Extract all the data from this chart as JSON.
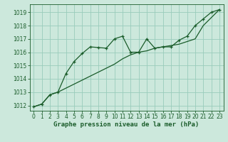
{
  "title": "Graphe pression niveau de la mer (hPa)",
  "bg_color": "#cce8dc",
  "grid_color": "#99ccbb",
  "line_color": "#1a5c2a",
  "spine_color": "#1a5c2a",
  "x_ticks": [
    0,
    1,
    2,
    3,
    4,
    5,
    6,
    7,
    8,
    9,
    10,
    11,
    12,
    13,
    14,
    15,
    16,
    17,
    18,
    19,
    20,
    21,
    22,
    23
  ],
  "y_ticks": [
    1012,
    1013,
    1014,
    1015,
    1016,
    1017,
    1018,
    1019
  ],
  "ylim": [
    1011.6,
    1019.6
  ],
  "xlim": [
    -0.5,
    23.5
  ],
  "line1_x": [
    0,
    1,
    2,
    3,
    4,
    5,
    6,
    7,
    8,
    9,
    10,
    11,
    12,
    13,
    14,
    15,
    16,
    17,
    18,
    19,
    20,
    21,
    22,
    23
  ],
  "line1_y": [
    1011.9,
    1012.1,
    1012.8,
    1013.0,
    1014.4,
    1015.3,
    1015.9,
    1016.4,
    1016.35,
    1016.3,
    1017.0,
    1017.2,
    1016.0,
    1016.0,
    1017.0,
    1016.3,
    1016.4,
    1016.4,
    1016.9,
    1017.2,
    1018.0,
    1018.5,
    1019.0,
    1019.2
  ],
  "line2_x": [
    0,
    1,
    2,
    3,
    4,
    5,
    6,
    7,
    8,
    9,
    10,
    11,
    12,
    13,
    14,
    15,
    16,
    17,
    18,
    19,
    20,
    21,
    22,
    23
  ],
  "line2_y": [
    1011.9,
    1012.1,
    1012.8,
    1013.0,
    1013.3,
    1013.6,
    1013.9,
    1014.2,
    1014.5,
    1014.8,
    1015.1,
    1015.5,
    1015.8,
    1016.0,
    1016.1,
    1016.3,
    1016.4,
    1016.5,
    1016.6,
    1016.8,
    1017.0,
    1018.0,
    1018.6,
    1019.2
  ],
  "tick_fontsize": 5.5,
  "label_fontsize": 6.5
}
